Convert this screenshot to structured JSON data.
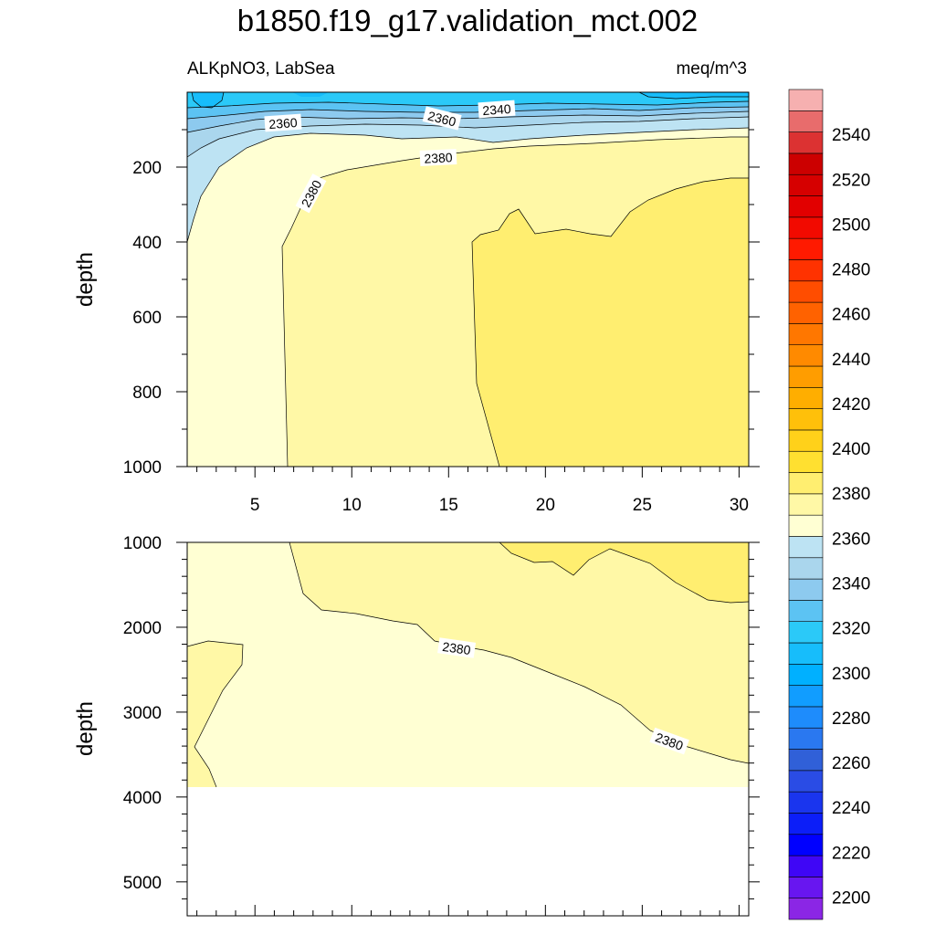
{
  "chart_data": {
    "type": "heatmap",
    "title": "b1850.f19_g17.validation_mct.002",
    "subtitle_left": "ALKpNO3, LabSea",
    "subtitle_right": "meq/m^3",
    "colormap_name": "filled contour, depth section",
    "panels": [
      {
        "name": "upper",
        "ylabel": "depth",
        "xlim": [
          1.5,
          30.5
        ],
        "ylim": [
          0,
          1000
        ],
        "x_ticks": [
          "5",
          "10",
          "15",
          "20",
          "25",
          "30"
        ],
        "y_ticks": [
          "200",
          "400",
          "600",
          "800",
          "1000"
        ],
        "contour_labels": [
          "2340",
          "2360",
          "2360",
          "2380",
          "2380"
        ]
      },
      {
        "name": "lower",
        "ylabel": "depth",
        "xlim": [
          1.5,
          30.5
        ],
        "ylim": [
          1000,
          5400
        ],
        "y_ticks": [
          "1000",
          "2000",
          "3000",
          "4000",
          "5000"
        ],
        "data_bottom_depth": 3870,
        "contour_labels": [
          "2380",
          "2380"
        ]
      }
    ],
    "colorbar": {
      "min": 2190,
      "max": 2560,
      "step": 10,
      "labels": [
        "2200",
        "2220",
        "2240",
        "2260",
        "2280",
        "2300",
        "2320",
        "2340",
        "2360",
        "2380",
        "2400",
        "2420",
        "2440",
        "2460",
        "2480",
        "2500",
        "2520",
        "2540"
      ],
      "colors": [
        "#8b26e5",
        "#6816f0",
        "#3f06f6",
        "#0000ff",
        "#0c1ef8",
        "#1a35ee",
        "#2a4ce5",
        "#3060d8",
        "#2a78f0",
        "#1e8cfc",
        "#119dff",
        "#00b0ff",
        "#17bdfb",
        "#2bc9f8",
        "#5cc3f3",
        "#8dcaef",
        "#aad6ed",
        "#bde3f3",
        "#ffffd3",
        "#fff8a6",
        "#ffee70",
        "#ffe030",
        "#ffd11a",
        "#ffc00a",
        "#ffae00",
        "#ff9d00",
        "#ff8a00",
        "#ff7700",
        "#ff6200",
        "#ff4d00",
        "#ff3200",
        "#ff1a00",
        "#f20a00",
        "#e20000",
        "#d60000",
        "#cc0000",
        "#dc3232",
        "#e86c6c",
        "#f6b0b0"
      ]
    },
    "colors": {
      "lightest_yellow": "#ffffd3",
      "light_yellow": "#fff8a6",
      "yellow": "#ffee70",
      "band_2350": "#aad6ed",
      "band_2340": "#8dcaef",
      "band_2330": "#5cc3f3",
      "band_2320": "#2bc9f8",
      "band_2310": "#17bdfb"
    }
  }
}
